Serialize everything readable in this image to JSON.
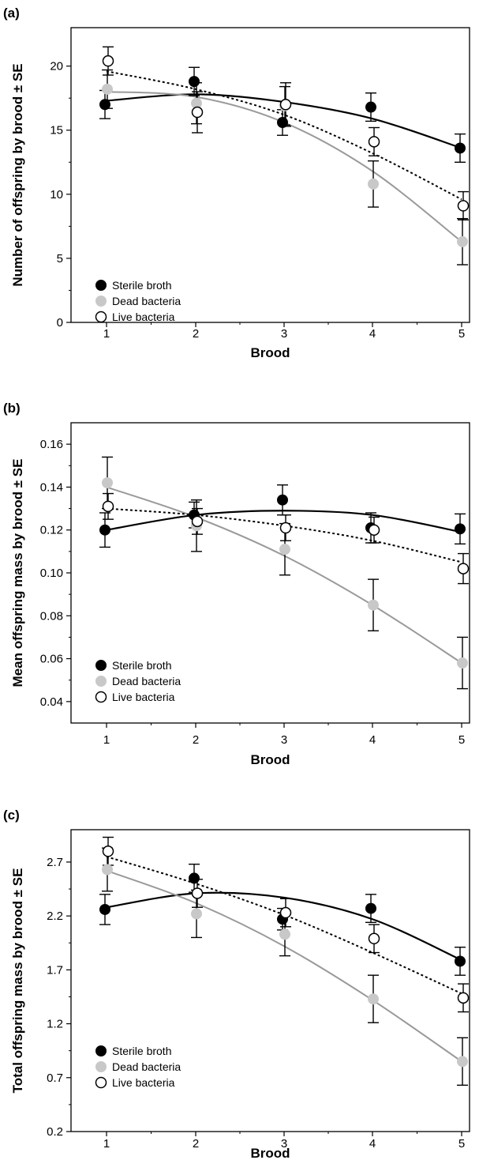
{
  "figure": {
    "legend": {
      "entries": [
        {
          "label": "Sterile broth",
          "marker": "filled-black"
        },
        {
          "label": "Dead bacteria",
          "marker": "filled-grey"
        },
        {
          "label": "Live bacteria",
          "marker": "open-circle"
        }
      ],
      "placement": "bottom-left"
    }
  },
  "colors": {
    "sterile": "#000000",
    "dead": "#c8c8c8",
    "dead_line": "#9a9a9a",
    "live": "#000000"
  },
  "chart_data": [
    {
      "panel": "(a)",
      "type": "scatter",
      "xlabel": "Brood",
      "ylabel": "Number of offspring by brood ± SE",
      "categories": [
        1,
        2,
        3,
        4,
        5
      ],
      "xticks": [
        "1",
        "2",
        "3",
        "4",
        "5"
      ],
      "yticks": [
        "0",
        "5",
        "10",
        "15",
        "20"
      ],
      "ylim": [
        0,
        23
      ],
      "series": [
        {
          "name": "Sterile broth",
          "values": [
            17.0,
            18.8,
            15.6,
            16.8,
            13.6
          ],
          "se": [
            1.1,
            1.1,
            1.0,
            1.1,
            1.1
          ],
          "fit": [
            17.3,
            17.8,
            17.2,
            15.9,
            13.6
          ]
        },
        {
          "name": "Dead bacteria",
          "values": [
            18.2,
            17.1,
            16.9,
            10.8,
            6.3
          ],
          "se": [
            1.5,
            1.6,
            1.5,
            1.8,
            1.8
          ],
          "fit": [
            18.0,
            17.6,
            15.6,
            11.8,
            6.3
          ]
        },
        {
          "name": "Live bacteria",
          "values": [
            20.4,
            16.4,
            17.0,
            14.1,
            9.1
          ],
          "se": [
            1.1,
            1.6,
            1.7,
            1.1,
            1.1
          ],
          "fit": [
            19.6,
            18.2,
            16.2,
            13.2,
            9.6
          ]
        }
      ]
    },
    {
      "panel": "(b)",
      "type": "scatter",
      "xlabel": "Brood",
      "ylabel": "Mean offspring mass by brood ± SE",
      "categories": [
        1,
        2,
        3,
        4,
        5
      ],
      "xticks": [
        "1",
        "2",
        "3",
        "4",
        "5"
      ],
      "yticks": [
        "0.04",
        "0.06",
        "0.08",
        "0.10",
        "0.12",
        "0.14",
        "0.16"
      ],
      "ylim": [
        0.03,
        0.17
      ],
      "series": [
        {
          "name": "Sterile broth",
          "values": [
            0.12,
            0.127,
            0.134,
            0.121,
            0.1205
          ],
          "se": [
            0.008,
            0.006,
            0.007,
            0.007,
            0.007
          ],
          "fit": [
            0.12,
            0.127,
            0.129,
            0.127,
            0.119
          ]
        },
        {
          "name": "Dead bacteria",
          "values": [
            0.142,
            0.122,
            0.111,
            0.085,
            0.058
          ],
          "se": [
            0.012,
            0.012,
            0.012,
            0.012,
            0.012
          ],
          "fit": [
            0.14,
            0.126,
            0.108,
            0.085,
            0.058
          ]
        },
        {
          "name": "Live bacteria",
          "values": [
            0.131,
            0.124,
            0.121,
            0.12,
            0.102
          ],
          "se": [
            0.006,
            0.006,
            0.006,
            0.006,
            0.007
          ],
          "fit": [
            0.13,
            0.127,
            0.122,
            0.115,
            0.105
          ]
        }
      ]
    },
    {
      "panel": "(c)",
      "type": "scatter",
      "xlabel": "Brood",
      "ylabel": "Total offspring mass by brood ± SE",
      "categories": [
        1,
        2,
        3,
        4,
        5
      ],
      "xticks": [
        "1",
        "2",
        "3",
        "4",
        "5"
      ],
      "yticks": [
        "0.2",
        "0.7",
        "1.2",
        "1.7",
        "2.2",
        "2.7"
      ],
      "ylim": [
        0.2,
        3.0
      ],
      "series": [
        {
          "name": "Sterile broth",
          "values": [
            2.26,
            2.55,
            2.17,
            2.27,
            1.78
          ],
          "se": [
            0.14,
            0.13,
            0.1,
            0.13,
            0.13
          ],
          "fit": [
            2.28,
            2.41,
            2.37,
            2.17,
            1.79
          ]
        },
        {
          "name": "Dead bacteria",
          "values": [
            2.63,
            2.22,
            2.03,
            1.43,
            0.85
          ],
          "se": [
            0.2,
            0.22,
            0.2,
            0.22,
            0.22
          ],
          "fit": [
            2.62,
            2.32,
            1.92,
            1.42,
            0.85
          ]
        },
        {
          "name": "Live bacteria",
          "values": [
            2.8,
            2.41,
            2.23,
            1.99,
            1.44
          ],
          "se": [
            0.13,
            0.13,
            0.13,
            0.13,
            0.13
          ],
          "fit": [
            2.75,
            2.5,
            2.21,
            1.86,
            1.48
          ]
        }
      ]
    }
  ]
}
